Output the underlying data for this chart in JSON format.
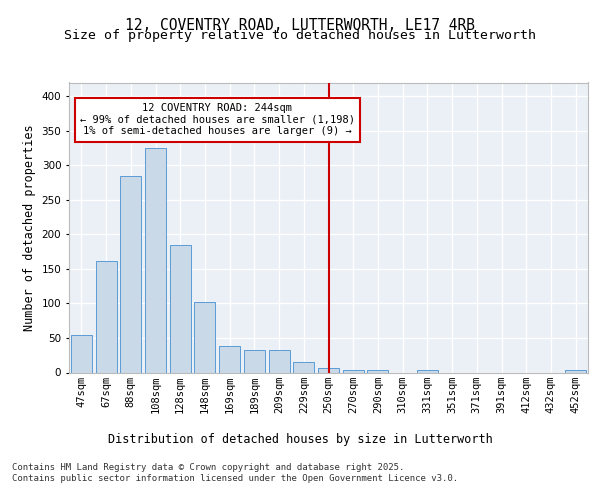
{
  "title_line1": "12, COVENTRY ROAD, LUTTERWORTH, LE17 4RB",
  "title_line2": "Size of property relative to detached houses in Lutterworth",
  "xlabel": "Distribution of detached houses by size in Lutterworth",
  "ylabel": "Number of detached properties",
  "bar_labels": [
    "47sqm",
    "67sqm",
    "88sqm",
    "108sqm",
    "128sqm",
    "148sqm",
    "169sqm",
    "189sqm",
    "209sqm",
    "229sqm",
    "250sqm",
    "270sqm",
    "290sqm",
    "310sqm",
    "331sqm",
    "351sqm",
    "371sqm",
    "391sqm",
    "412sqm",
    "432sqm",
    "452sqm"
  ],
  "bar_values": [
    55,
    162,
    284,
    325,
    185,
    102,
    38,
    32,
    32,
    15,
    6,
    3,
    4,
    0,
    4,
    0,
    0,
    0,
    0,
    0,
    3
  ],
  "bar_color": "#c9d9e8",
  "bar_edgecolor": "#5b9bd5",
  "highlight_index": 10,
  "highlight_color": "#cc0000",
  "annotation_line1": "12 COVENTRY ROAD: 244sqm",
  "annotation_line2": "← 99% of detached houses are smaller (1,198)",
  "annotation_line3": "1% of semi-detached houses are larger (9) →",
  "annotation_box_edgecolor": "#cc0000",
  "annotation_box_facecolor": "white",
  "ylim": [
    0,
    420
  ],
  "yticks": [
    0,
    50,
    100,
    150,
    200,
    250,
    300,
    350,
    400
  ],
  "footer_line1": "Contains HM Land Registry data © Crown copyright and database right 2025.",
  "footer_line2": "Contains public sector information licensed under the Open Government Licence v3.0.",
  "background_color": "#eaf0f6",
  "grid_color": "white",
  "title_fontsize": 10.5,
  "subtitle_fontsize": 9.5,
  "axis_label_fontsize": 8.5,
  "tick_fontsize": 7.5,
  "annotation_fontsize": 7.5,
  "footer_fontsize": 6.5
}
